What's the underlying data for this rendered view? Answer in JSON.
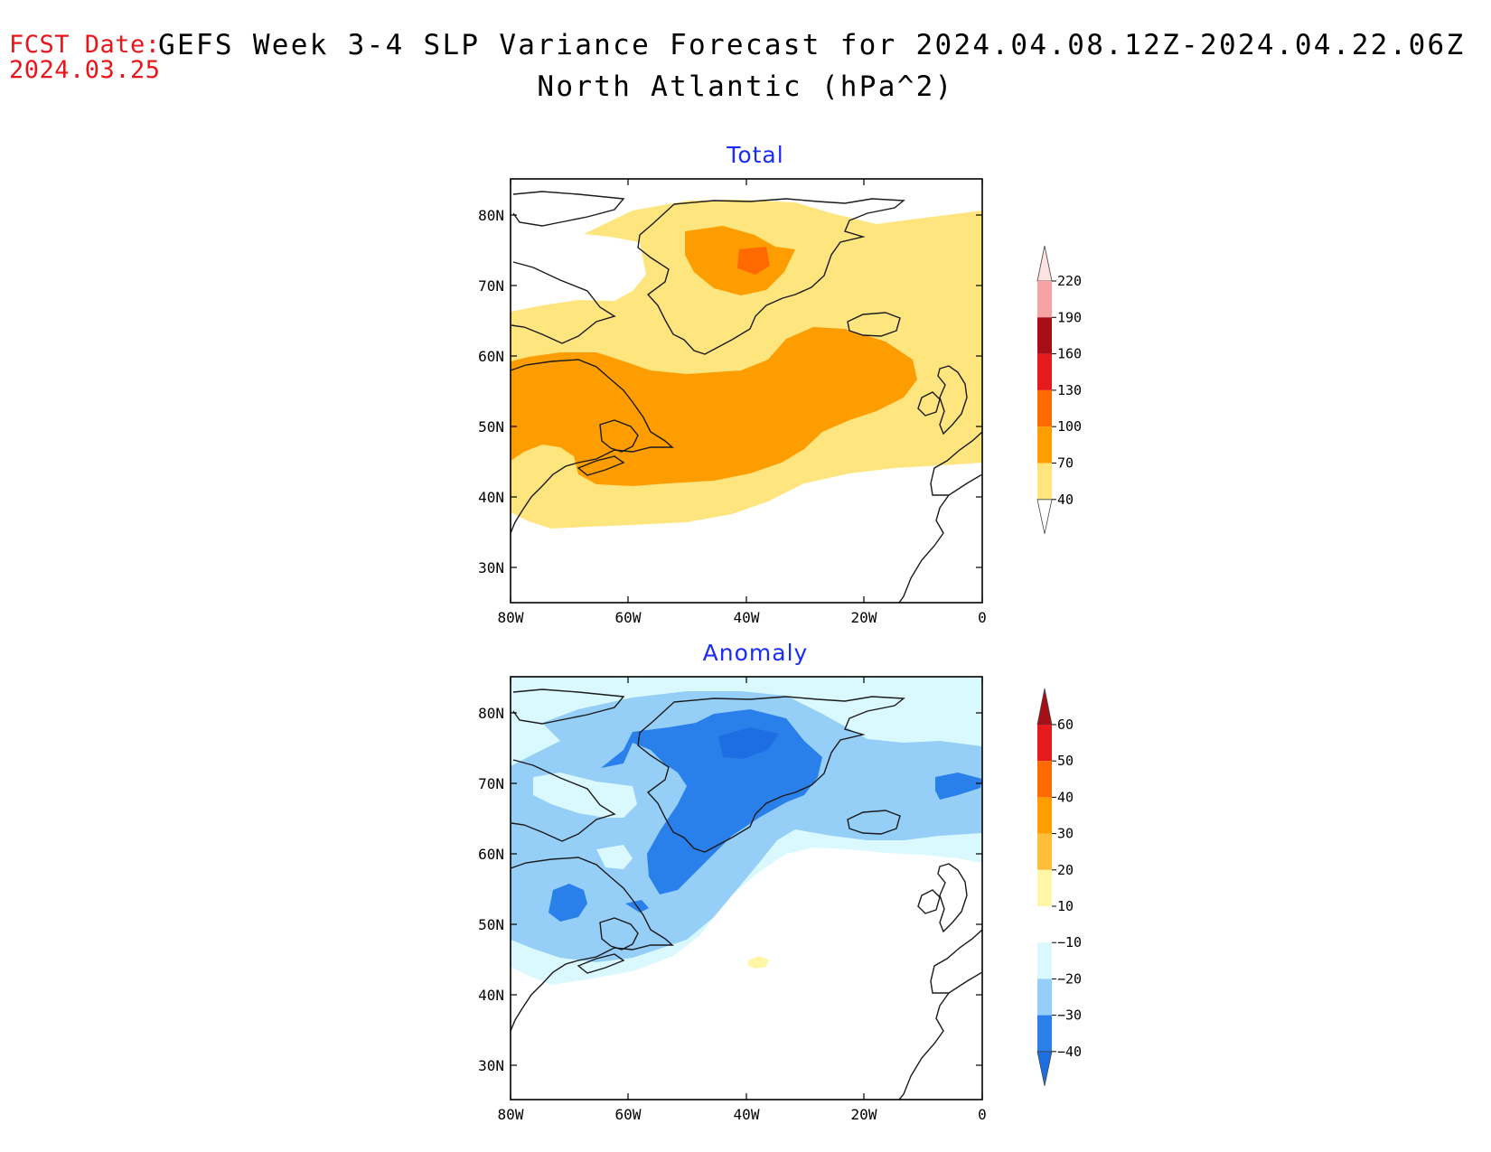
{
  "header": {
    "fcst_label": "FCST Date:",
    "fcst_date": "2024.03.25",
    "title_line1": "GEFS Week 3-4 SLP Variance Forecast for 2024.04.08.12Z-2024.04.22.06Z",
    "title_line2": "North Atlantic (hPa^2)"
  },
  "panels": [
    {
      "title": "Total",
      "title_color": "#1a2cf5",
      "lat_labels": [
        "80N",
        "70N",
        "60N",
        "50N",
        "40N",
        "30N"
      ],
      "lon_labels": [
        "80W",
        "60W",
        "40W",
        "20W",
        "0"
      ],
      "legend": {
        "labels": [
          "220",
          "190",
          "160",
          "130",
          "100",
          "70",
          "40"
        ],
        "colors": [
          "#f6a3a4",
          "#a50f15",
          "#e41a1c",
          "#fe6a00",
          "#fe9d00",
          "#ffe57e"
        ],
        "top_tri_color": "#fde2e2",
        "bottom_tri_color": "#ffffff"
      }
    },
    {
      "title": "Anomaly",
      "title_color": "#1a2cf5",
      "lat_labels": [
        "80N",
        "70N",
        "60N",
        "50N",
        "40N",
        "30N"
      ],
      "lon_labels": [
        "80W",
        "60W",
        "40W",
        "20W",
        "0"
      ],
      "legend": {
        "labels": [
          "60",
          "50",
          "40",
          "30",
          "20",
          "10",
          "−10",
          "−20",
          "−30",
          "−40"
        ],
        "colors": [
          "#e41a1c",
          "#fe6a00",
          "#fe9d00",
          "#ffbe3a",
          "#fff6a6",
          "#ffffff",
          "#d9f9fe",
          "#95cff8",
          "#2a80ea"
        ],
        "top_tri_color": "#a50f15",
        "bottom_tri_color": "#1d6ee3"
      }
    }
  ]
}
